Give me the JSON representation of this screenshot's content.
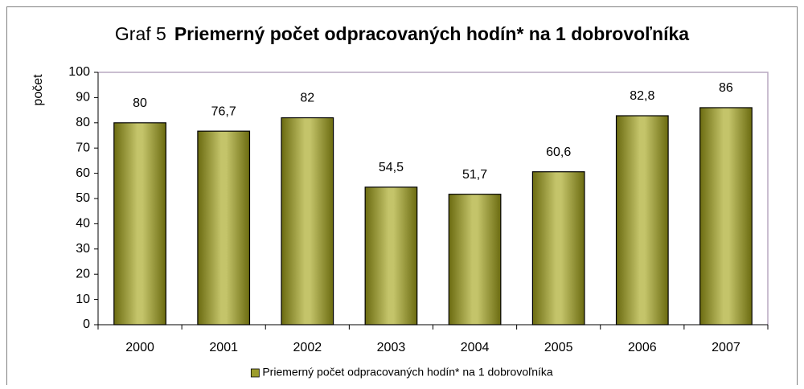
{
  "chart_data": {
    "type": "bar",
    "title_prefix": "Graf 5",
    "title": "Priemerný počet odpracovaných hodín* na 1 dobrovoľníka",
    "y_label": "počet",
    "categories": [
      "2000",
      "2001",
      "2002",
      "2003",
      "2004",
      "2005",
      "2006",
      "2007"
    ],
    "series": [
      {
        "name": "Priemerný počet odpracovaných hodín* na 1 dobrovoľníka",
        "color": "#9c9c2c",
        "values": [
          80,
          76.7,
          82,
          54.5,
          51.7,
          60.6,
          82.8,
          86
        ],
        "value_labels": [
          "80",
          "76,7",
          "82",
          "54,5",
          "51,7",
          "60,6",
          "82,8",
          "86"
        ]
      }
    ],
    "ylim": [
      0,
      100
    ],
    "yticks": [
      0,
      10,
      20,
      30,
      40,
      50,
      60,
      70,
      80,
      90,
      100
    ],
    "grid": false,
    "legend": "bottom"
  }
}
